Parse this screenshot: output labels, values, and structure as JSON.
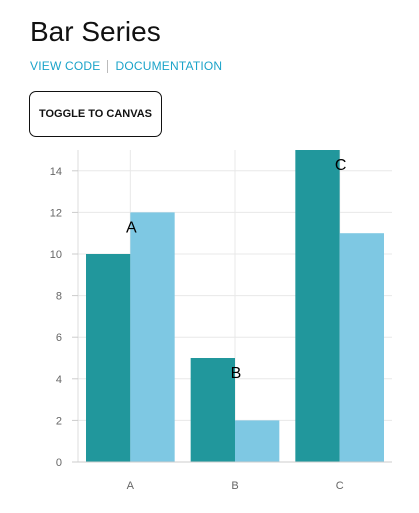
{
  "page": {
    "title": "Bar Series",
    "links": {
      "view_code": "VIEW CODE",
      "documentation": "DOCUMENTATION"
    },
    "toggle_label": "TOGGLE TO CANVAS"
  },
  "colors": {
    "series_dark": "#21979c",
    "series_light": "#7ec8e3",
    "link": "#1aa3c9",
    "grid": "#e8e8e8",
    "axis_text": "#666666"
  },
  "chart_data": {
    "type": "bar",
    "categories": [
      "A",
      "B",
      "C"
    ],
    "series": [
      {
        "values": [
          10,
          5,
          15
        ]
      },
      {
        "values": [
          12,
          2,
          11
        ]
      }
    ],
    "annotations": [
      {
        "text": "A",
        "x": "A",
        "y": 12
      },
      {
        "text": "B",
        "x": "B",
        "y": 5
      },
      {
        "text": "C",
        "x": "C",
        "y": 15
      }
    ],
    "ylim": [
      0,
      15
    ],
    "yticks": [
      0,
      2,
      4,
      6,
      8,
      10,
      12,
      14
    ],
    "grid": true,
    "title": "",
    "xlabel": "",
    "ylabel": ""
  }
}
